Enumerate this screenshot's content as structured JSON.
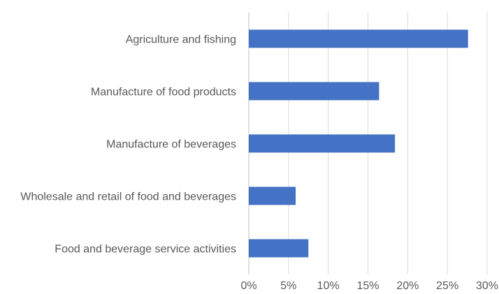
{
  "chart_data": {
    "type": "bar",
    "orientation": "horizontal",
    "title": "",
    "xlabel": "",
    "ylabel": "",
    "categories": [
      "Agriculture and fishing",
      "Manufacture of food products",
      "Manufacture of beverages",
      "Wholesale and retail of food and beverages",
      "Food and beverage service activities"
    ],
    "series": [
      {
        "values": [
          0.276,
          0.164,
          0.184,
          0.059,
          0.075
        ]
      }
    ],
    "xlim": [
      0,
      0.3
    ],
    "ticks": [
      0,
      0.05,
      0.1,
      0.15,
      0.2,
      0.25,
      0.3
    ],
    "tick_labels": [
      "0%",
      "5%",
      "10%",
      "15%",
      "20%",
      "25%",
      "30%"
    ],
    "grid": true,
    "legend": "none",
    "bar_color": "#4472c4"
  }
}
